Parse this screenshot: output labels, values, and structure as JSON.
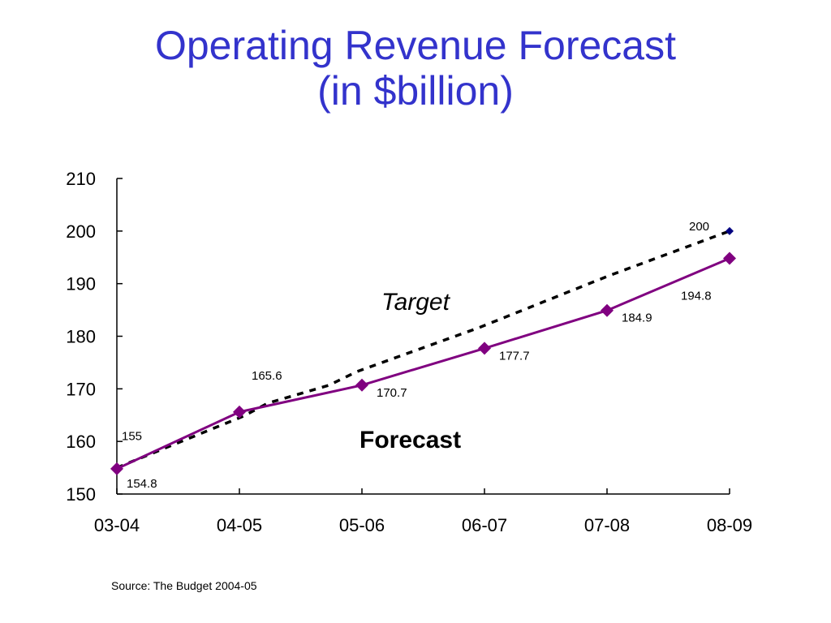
{
  "slide": {
    "title_line1": "Operating Revenue Forecast",
    "title_line2": "(in $billion)",
    "source": "Source: The Budget 2004-05"
  },
  "chart_data": {
    "type": "line",
    "categories": [
      "03-04",
      "04-05",
      "05-06",
      "06-07",
      "07-08",
      "08-09"
    ],
    "ylim": [
      150,
      210
    ],
    "yticks": [
      150,
      160,
      170,
      180,
      190,
      200,
      210
    ],
    "series": [
      {
        "name": "Forecast",
        "values": [
          154.8,
          165.6,
          170.7,
          177.7,
          184.9,
          194.8
        ],
        "labels": [
          "154.8",
          "165.6",
          "170.7",
          "177.7",
          "184.9",
          "194.8"
        ],
        "color": "#800080",
        "style": "solid",
        "marker": "diamond"
      },
      {
        "name": "Target",
        "values": [
          155,
          null,
          null,
          null,
          null,
          200
        ],
        "labels": [
          "155",
          null,
          null,
          null,
          null,
          "200"
        ],
        "color": "#000000",
        "marker_color": "#000080",
        "style": "dashed"
      }
    ],
    "annotations": {
      "target": "Target",
      "forecast": "Forecast"
    },
    "grid": false
  }
}
